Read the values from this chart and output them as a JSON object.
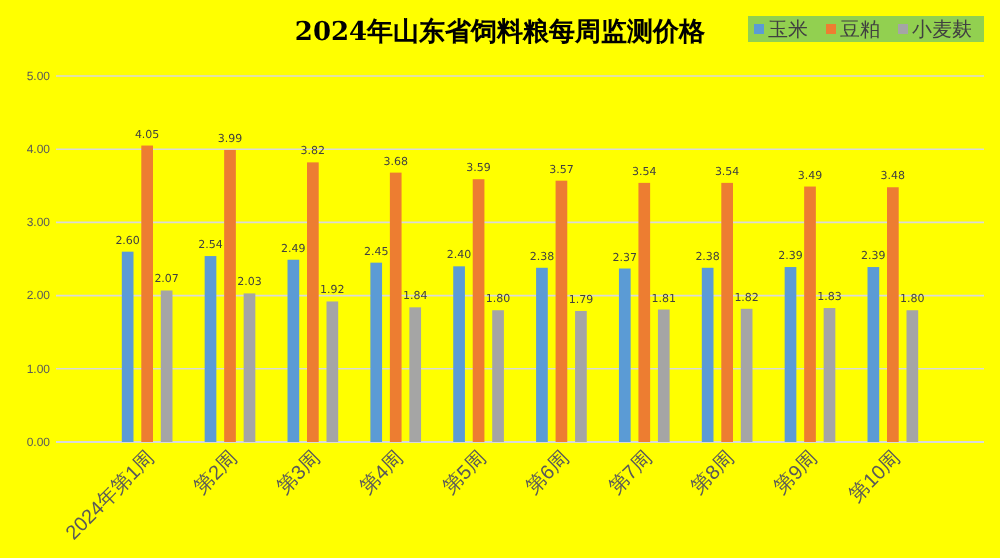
{
  "chart_data": {
    "type": "bar",
    "title": "2024年山东省饲料粮每周监测价格",
    "categories": [
      "2024年第1周",
      "第2周",
      "第3周",
      "第4周",
      "第5周",
      "第6周",
      "第7周",
      "第8周",
      "第9周",
      "第10周"
    ],
    "series": [
      {
        "name": "玉米",
        "color": "#5b9bd5",
        "values": [
          2.6,
          2.54,
          2.49,
          2.45,
          2.4,
          2.38,
          2.37,
          2.38,
          2.39,
          2.39
        ],
        "value_labels": [
          "2.60",
          "2.54",
          "2.49",
          "2.45",
          "2.40",
          "2.38",
          "2.37",
          "2.38",
          "2.39",
          "2.39"
        ]
      },
      {
        "name": "豆粕",
        "color": "#ed7d31",
        "values": [
          4.05,
          3.99,
          3.82,
          3.68,
          3.59,
          3.57,
          3.54,
          3.54,
          3.49,
          3.48
        ],
        "value_labels": [
          "4.05",
          "3.99",
          "3.82",
          "3.68",
          "3.59",
          "3.57",
          "3.54",
          "3.54",
          "3.49",
          "3.48"
        ]
      },
      {
        "name": "小麦麸",
        "color": "#a5a5a5",
        "values": [
          2.07,
          2.03,
          1.92,
          1.84,
          1.8,
          1.79,
          1.81,
          1.82,
          1.83,
          1.8
        ],
        "value_labels": [
          "2.07",
          "2.03",
          "1.92",
          "1.84",
          "1.80",
          "1.79",
          "1.81",
          "1.82",
          "1.83",
          "1.80"
        ]
      }
    ],
    "ylim": [
      0,
      5
    ],
    "yticks": [
      {
        "value": 0,
        "label": "0.00"
      },
      {
        "value": 1,
        "label": "1.00"
      },
      {
        "value": 2,
        "label": "2.00"
      },
      {
        "value": 3,
        "label": "3.00"
      },
      {
        "value": 4,
        "label": "4.00"
      },
      {
        "value": 5,
        "label": "5.00"
      }
    ],
    "grid": "y",
    "legend": "top right"
  }
}
